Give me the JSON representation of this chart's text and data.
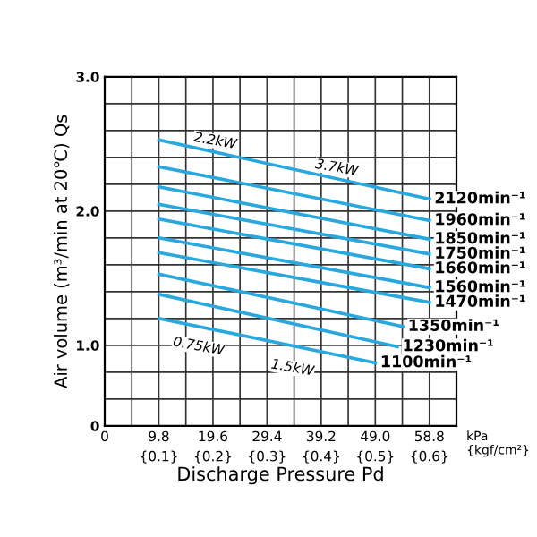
{
  "chart_data": {
    "type": "line",
    "xlabel": "Discharge Pressure Pd",
    "ylabel": "Air volume (m³/min at 20℃) Qs",
    "xlim": [
      0,
      63.7
    ],
    "ylim": [
      0.4,
      3.0
    ],
    "xticks": [
      0,
      9.8,
      19.6,
      29.4,
      39.2,
      {
        "value": 49.0,
        "label": "49.0"
      },
      58.8
    ],
    "x2lim": [
      0,
      0.65
    ],
    "x2ticks": [
      {
        "value": 0.1,
        "label": "{0.1}"
      },
      {
        "value": 0.2,
        "label": "{0.2}"
      },
      {
        "value": 0.3,
        "label": "{0.3}"
      },
      {
        "value": 0.4,
        "label": "{0.4}"
      },
      {
        "value": 0.5,
        "label": "{0.5}"
      },
      {
        "value": 0.6,
        "label": "{0.6}"
      }
    ],
    "yticks": [
      {
        "value": 0.4,
        "label": "0"
      },
      {
        "value": 1.0,
        "label": "1.0"
      },
      {
        "value": 2.0,
        "label": "2.0"
      },
      {
        "value": 3.0,
        "label": "3.0"
      }
    ],
    "grid": true,
    "legend": false,
    "marker": "none",
    "line_style": "solid",
    "series": [
      {
        "name": "2120min⁻¹",
        "color": "#29a8e0",
        "x": [
          9.8,
          58.8
        ],
        "values": [
          2.53,
          2.09
        ]
      },
      {
        "name": "1960min⁻¹",
        "color": "#29a8e0",
        "x": [
          9.8,
          58.8
        ],
        "values": [
          2.33,
          1.93
        ]
      },
      {
        "name": "1850min⁻¹",
        "color": "#29a8e0",
        "x": [
          9.8,
          58.8
        ],
        "values": [
          2.18,
          1.79
        ]
      },
      {
        "name": "1750min⁻¹",
        "color": "#29a8e0",
        "x": [
          9.8,
          58.8
        ],
        "values": [
          2.05,
          1.68
        ]
      },
      {
        "name": "1660min⁻¹",
        "color": "#29a8e0",
        "x": [
          9.8,
          58.8
        ],
        "values": [
          1.94,
          1.57
        ]
      },
      {
        "name": "1560min⁻¹",
        "color": "#29a8e0",
        "x": [
          9.8,
          58.8
        ],
        "values": [
          1.8,
          1.43
        ]
      },
      {
        "name": "1470min⁻¹",
        "color": "#29a8e0",
        "x": [
          9.8,
          58.8
        ],
        "values": [
          1.69,
          1.32
        ]
      },
      {
        "name": "1350min⁻¹",
        "color": "#29a8e0",
        "x": [
          9.8,
          54
        ],
        "values": [
          1.53,
          1.14
        ]
      },
      {
        "name": "1230min⁻¹",
        "color": "#29a8e0",
        "x": [
          9.8,
          53
        ],
        "values": [
          1.38,
          0.99
        ]
      },
      {
        "name": "1100min⁻¹",
        "color": "#29a8e0",
        "x": [
          9.8,
          49
        ],
        "values": [
          1.2,
          0.87
        ]
      }
    ],
    "annotations": [
      {
        "text": "2.2kW",
        "x": 20,
        "y": 2.52
      },
      {
        "text": "3.7kW",
        "x": 42,
        "y": 2.32
      },
      {
        "text": "0.75kW",
        "x": 17,
        "y": 0.99
      },
      {
        "text": "1.5kW",
        "x": 34,
        "y": 0.83
      },
      "kPa\n{kgf/cm²}"
    ]
  }
}
